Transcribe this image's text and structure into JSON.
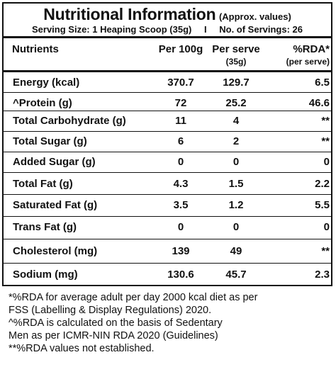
{
  "header": {
    "title": "Nutritional Information",
    "subtitle": "(Approx. values)",
    "serving_size": "Serving Size: 1 Heaping Scoop (35g)",
    "separator": "I",
    "servings": "No. of Servings: 26"
  },
  "columns": {
    "nutrients": "Nutrients",
    "per_100g": "Per 100g",
    "per_serve": "Per serve",
    "per_serve_sub": "(35g)",
    "rda": "%RDA*",
    "rda_sub": "(per serve)"
  },
  "rows": [
    {
      "name": "Energy (kcal)",
      "per_100g": "370.7",
      "per_serve": "129.7",
      "rda": "6.5"
    },
    {
      "name": "^Protein (g)",
      "per_100g": "72",
      "per_serve": "25.2",
      "rda": "46.6"
    },
    {
      "name": "Total Carbohydrate (g)",
      "per_100g": "11",
      "per_serve": "4",
      "rda": "**"
    },
    {
      "name": "Total Sugar (g)",
      "per_100g": "6",
      "per_serve": "2",
      "rda": "**"
    },
    {
      "name": "Added Sugar (g)",
      "per_100g": "0",
      "per_serve": "0",
      "rda": "0"
    },
    {
      "name": "Total Fat (g)",
      "per_100g": "4.3",
      "per_serve": "1.5",
      "rda": "2.2"
    },
    {
      "name": "Saturated Fat (g)",
      "per_100g": "3.5",
      "per_serve": "1.2",
      "rda": "5.5"
    },
    {
      "name": "Trans Fat (g)",
      "per_100g": "0",
      "per_serve": "0",
      "rda": "0"
    },
    {
      "name": "Cholesterol (mg)",
      "per_100g": "139",
      "per_serve": "49",
      "rda": "**"
    },
    {
      "name": "Sodium (mg)",
      "per_100g": "130.6",
      "per_serve": "45.7",
      "rda": "2.3"
    }
  ],
  "footnotes": [
    "*%RDA for average adult per day 2000 kcal diet as per",
    "FSS (Labelling & Display Regulations) 2020.",
    "^%RDA is calculated on the basis of Sedentary",
    "Men as per ICMR-NIN RDA 2020 (Guidelines)",
    "**%RDA values not established."
  ]
}
